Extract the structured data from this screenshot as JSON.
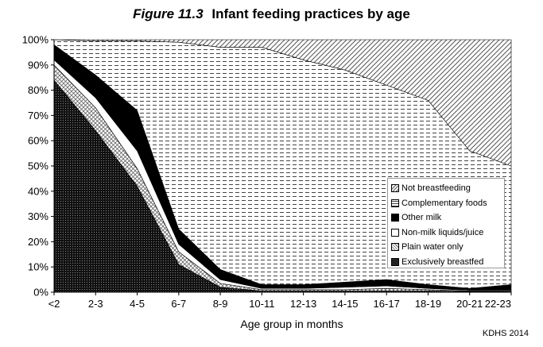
{
  "figure": {
    "number": "Figure 11.3",
    "title": "Infant feeding practices by age",
    "source": "KDHS 2014"
  },
  "chart_data": {
    "type": "area",
    "stacked": true,
    "title": "Infant feeding practices by age",
    "xlabel": "Age group in months",
    "ylabel": "",
    "categories": [
      "<2",
      "2-3",
      "4-5",
      "6-7",
      "8-9",
      "10-11",
      "12-13",
      "14-15",
      "16-17",
      "18-19",
      "20-21",
      "22-23"
    ],
    "ylim": [
      0,
      100
    ],
    "yticks": [
      0,
      10,
      20,
      30,
      40,
      50,
      60,
      70,
      80,
      90,
      100
    ],
    "ytick_labels": [
      "0%",
      "10%",
      "20%",
      "30%",
      "40%",
      "50%",
      "60%",
      "70%",
      "80%",
      "90%",
      "100%"
    ],
    "grid": false,
    "legend_position": "bottom-right",
    "cumulative_series": [
      {
        "name": "Exclusively breastfed",
        "values": [
          84,
          64,
          42,
          11,
          2,
          0.5,
          0.5,
          0.5,
          0.5,
          0.5,
          0.3,
          0.2
        ]
      },
      {
        "name": "Plain water only",
        "values": [
          90,
          73,
          49,
          16,
          3.5,
          1,
          1,
          1,
          1.5,
          1,
          0.5,
          0.5
        ]
      },
      {
        "name": "Non-milk liquids/juice",
        "values": [
          92,
          77,
          56,
          19,
          5,
          1.5,
          1.5,
          2,
          2.5,
          1.5,
          0.8,
          0.8
        ]
      },
      {
        "name": "Other milk",
        "values": [
          98,
          86,
          72,
          25,
          9,
          3,
          3,
          4,
          5,
          3,
          1.5,
          3
        ]
      },
      {
        "name": "Complementary foods",
        "values": [
          100,
          99.5,
          99.5,
          99,
          97,
          97,
          92,
          88,
          82,
          76,
          56,
          50
        ]
      },
      {
        "name": "Not breastfeeding",
        "values": [
          100,
          100,
          100,
          100,
          100,
          100,
          100,
          100,
          100,
          100,
          100,
          100
        ]
      }
    ]
  },
  "legend": {
    "items": [
      {
        "label": "Not breastfeeding",
        "pattern": "diag"
      },
      {
        "label": "Complementary foods",
        "pattern": "dash"
      },
      {
        "label": "Other milk",
        "pattern": "solid"
      },
      {
        "label": "Non-milk liquids/juice",
        "pattern": "plain"
      },
      {
        "label": "Plain water only",
        "pattern": "cross"
      },
      {
        "label": "Exclusively breastfed",
        "pattern": "dots"
      }
    ]
  }
}
